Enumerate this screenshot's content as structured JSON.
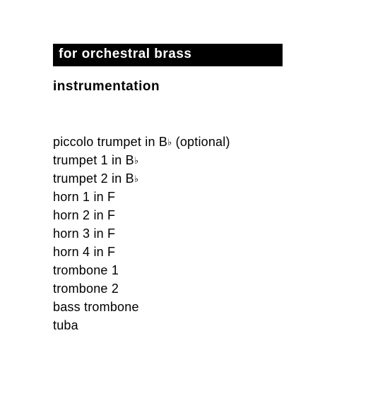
{
  "banner": {
    "text": "for orchestral brass",
    "bg_color": "#000000",
    "text_color": "#ffffff"
  },
  "section_title": "instrumentation",
  "instruments": [
    {
      "pre": "piccolo trumpet in B",
      "flat": "♭",
      "post": " (optional)"
    },
    {
      "pre": "trumpet 1 in B",
      "flat": "♭",
      "post": ""
    },
    {
      "pre": "trumpet 2 in B",
      "flat": "♭",
      "post": ""
    },
    {
      "pre": "horn 1 in F",
      "flat": "",
      "post": ""
    },
    {
      "pre": "horn 2 in F",
      "flat": "",
      "post": ""
    },
    {
      "pre": "horn 3 in F",
      "flat": "",
      "post": ""
    },
    {
      "pre": "horn 4 in F",
      "flat": "",
      "post": ""
    },
    {
      "pre": "trombone 1",
      "flat": "",
      "post": ""
    },
    {
      "pre": "trombone 2",
      "flat": "",
      "post": ""
    },
    {
      "pre": "bass trombone",
      "flat": "",
      "post": ""
    },
    {
      "pre": "tuba",
      "flat": "",
      "post": ""
    }
  ]
}
